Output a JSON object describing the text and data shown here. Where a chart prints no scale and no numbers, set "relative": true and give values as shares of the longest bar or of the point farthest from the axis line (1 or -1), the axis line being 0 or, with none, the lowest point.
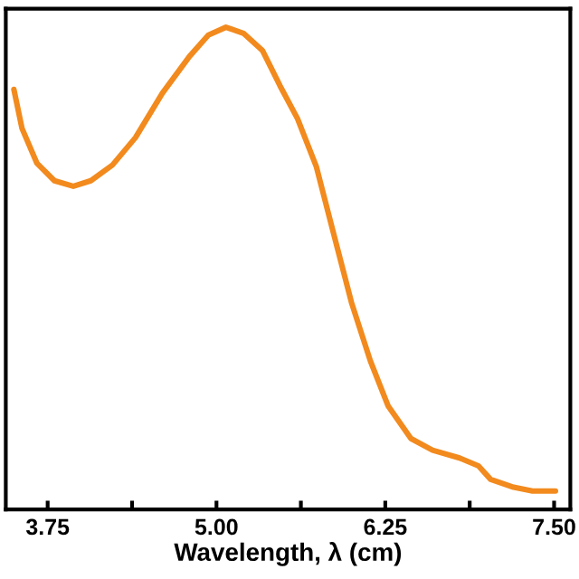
{
  "chart_data": {
    "type": "line",
    "xlabel": "Wavelength, λ (cm)",
    "relative": true,
    "xlim": [
      3.44,
      7.62
    ],
    "xticks": [
      {
        "value": 3.75,
        "label": "3.75"
      },
      {
        "value": 4.375,
        "label": null
      },
      {
        "value": 5.0,
        "label": "5.00"
      },
      {
        "value": 5.625,
        "label": null
      },
      {
        "value": 6.25,
        "label": "6.25"
      },
      {
        "value": 6.875,
        "label": null
      },
      {
        "value": 7.5,
        "label": "7.50"
      }
    ],
    "series": [
      {
        "color": "#f28a1e",
        "x": [
          3.5,
          3.56,
          3.67,
          3.8,
          3.94,
          4.07,
          4.23,
          4.4,
          4.6,
          4.8,
          4.94,
          5.07,
          5.2,
          5.34,
          5.47,
          5.6,
          5.74,
          5.87,
          6.0,
          6.14,
          6.27,
          6.44,
          6.6,
          6.8,
          6.94,
          7.03,
          7.2,
          7.34,
          7.51
        ],
        "values": [
          0.866,
          0.782,
          0.707,
          0.669,
          0.657,
          0.669,
          0.703,
          0.762,
          0.858,
          0.937,
          0.983,
          1.0,
          0.987,
          0.95,
          0.874,
          0.803,
          0.699,
          0.552,
          0.406,
          0.28,
          0.184,
          0.113,
          0.088,
          0.071,
          0.054,
          0.025,
          0.008,
          0,
          0
        ]
      }
    ],
    "grid": false,
    "legend": false
  }
}
